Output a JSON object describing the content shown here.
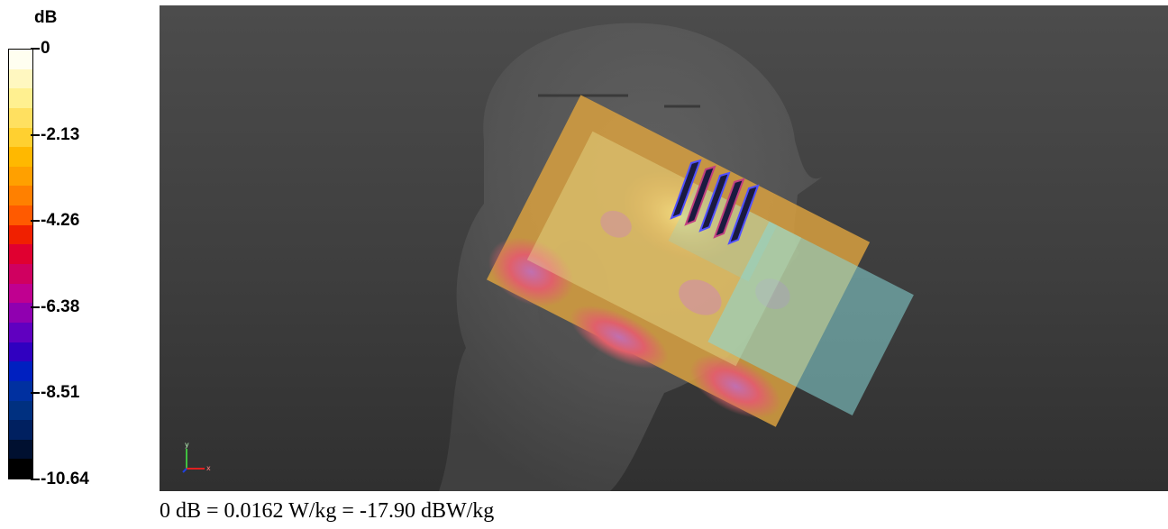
{
  "legend": {
    "unit": "dB",
    "ticks": [
      {
        "label": "0",
        "fraction": 0.0
      },
      {
        "label": "-2.13",
        "fraction": 0.2
      },
      {
        "label": "-4.26",
        "fraction": 0.4
      },
      {
        "label": "-6.38",
        "fraction": 0.6
      },
      {
        "label": "-8.51",
        "fraction": 0.8
      },
      {
        "label": "-10.64",
        "fraction": 1.0
      }
    ],
    "colors": [
      "#fffef0",
      "#fff7c0",
      "#fff090",
      "#ffe060",
      "#ffd030",
      "#ffb800",
      "#ffa000",
      "#ff8000",
      "#ff5a00",
      "#f02000",
      "#e00030",
      "#d00060",
      "#c00090",
      "#9000b0",
      "#6000c0",
      "#3000c0",
      "#0020c0",
      "#0030a0",
      "#003080",
      "#002060",
      "#001030",
      "#000000"
    ]
  },
  "viewport": {
    "axis_labels": {
      "x": "x",
      "y": "y"
    }
  },
  "caption": "0 dB = 0.0162 W/kg = -17.90 dBW/kg"
}
